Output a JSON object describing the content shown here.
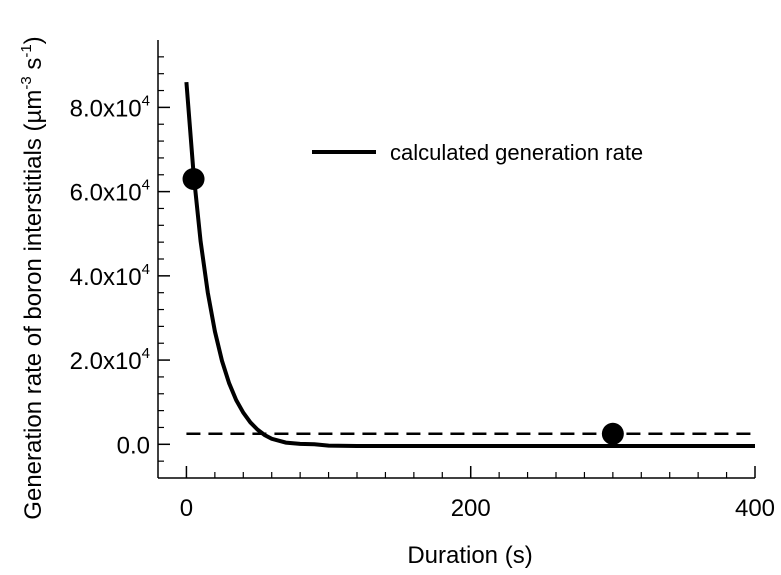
{
  "chart_data": {
    "type": "line",
    "xlabel": "Duration (s)",
    "ylabel": {
      "main": "Generation rate of boron interstitials (µm",
      "exp1": "-3",
      "middle": " s",
      "exp2": "-1",
      "end": ")"
    },
    "xlim": [
      -20,
      400
    ],
    "ylim": [
      -8000,
      96000
    ],
    "x_ticks": [
      {
        "value": 0,
        "label": "0"
      },
      {
        "value": 200,
        "label": "200"
      },
      {
        "value": 400,
        "label": "400"
      }
    ],
    "y_ticks": [
      {
        "value": 0,
        "label": "0.0",
        "exp": ""
      },
      {
        "value": 20000,
        "label": "2.0x10",
        "exp": "4"
      },
      {
        "value": 40000,
        "label": "4.0x10",
        "exp": "4"
      },
      {
        "value": 60000,
        "label": "6.0x10",
        "exp": "4"
      },
      {
        "value": 80000,
        "label": "8.0x10",
        "exp": "4"
      }
    ],
    "series": [
      {
        "name": "calculated generation rate",
        "style": "solid",
        "color": "#000000",
        "x": [
          0,
          5,
          10,
          15,
          20,
          25,
          30,
          35,
          40,
          45,
          50,
          55,
          60,
          70,
          80,
          90,
          100,
          120,
          150,
          200,
          250,
          300,
          350,
          400
        ],
        "y": [
          86000,
          64500,
          48200,
          36000,
          26800,
          19800,
          14500,
          10500,
          7500,
          5200,
          3500,
          2200,
          1300,
          400,
          100,
          0,
          -300,
          -400,
          -400,
          -400,
          -400,
          -400,
          -400,
          -400
        ]
      }
    ],
    "reference_line": {
      "style": "dashed",
      "y": 2500,
      "x": [
        0,
        400
      ]
    },
    "points": [
      {
        "x": 5,
        "y": 63000
      },
      {
        "x": 300,
        "y": 2500
      }
    ],
    "legend": {
      "position": "top-right"
    },
    "grid": false
  }
}
